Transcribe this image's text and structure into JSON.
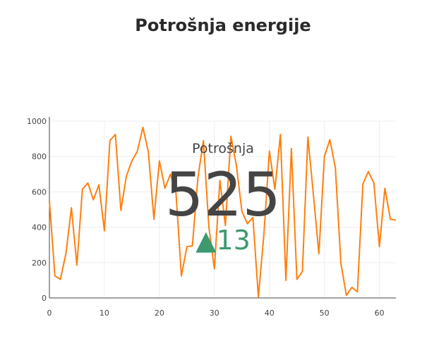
{
  "chart_data": {
    "type": "line",
    "title": "Potrošnja energije",
    "xlim": [
      0,
      63
    ],
    "ylim": [
      0,
      1000
    ],
    "x_ticks": [
      0,
      10,
      20,
      30,
      40,
      50,
      60
    ],
    "y_ticks": [
      0,
      200,
      400,
      600,
      800,
      1000
    ],
    "grid": true,
    "line_color": "#ff7f0e",
    "series": [
      {
        "x": [
          0,
          1,
          2,
          3,
          4,
          5,
          6,
          7,
          8,
          9,
          10,
          11,
          12,
          13,
          14,
          15,
          16,
          17,
          18,
          19,
          20,
          21,
          22,
          23,
          24,
          25,
          26,
          27,
          28,
          29,
          30,
          31,
          32,
          33,
          34,
          35,
          36,
          37,
          38,
          39,
          40,
          41,
          42,
          43,
          44,
          45,
          46,
          47,
          48,
          49,
          50,
          51,
          52,
          53,
          54,
          55,
          56,
          57,
          58,
          59,
          60,
          61,
          62,
          63
        ],
        "values": [
          550,
          125,
          105,
          250,
          510,
          185,
          615,
          650,
          555,
          640,
          380,
          890,
          925,
          495,
          690,
          775,
          830,
          965,
          825,
          445,
          775,
          620,
          700,
          600,
          125,
          290,
          295,
          680,
          890,
          400,
          165,
          665,
          410,
          915,
          750,
          490,
          420,
          455,
          5,
          360,
          830,
          615,
          925,
          100,
          845,
          105,
          150,
          910,
          585,
          250,
          800,
          895,
          735,
          195,
          15,
          60,
          35,
          645,
          715,
          650,
          290,
          620,
          445,
          440
        ]
      }
    ],
    "indicator": {
      "title": "Potrošnja",
      "value": "525",
      "delta": "13",
      "delta_symbol": "▲",
      "delta_color": "#3d9970"
    }
  }
}
